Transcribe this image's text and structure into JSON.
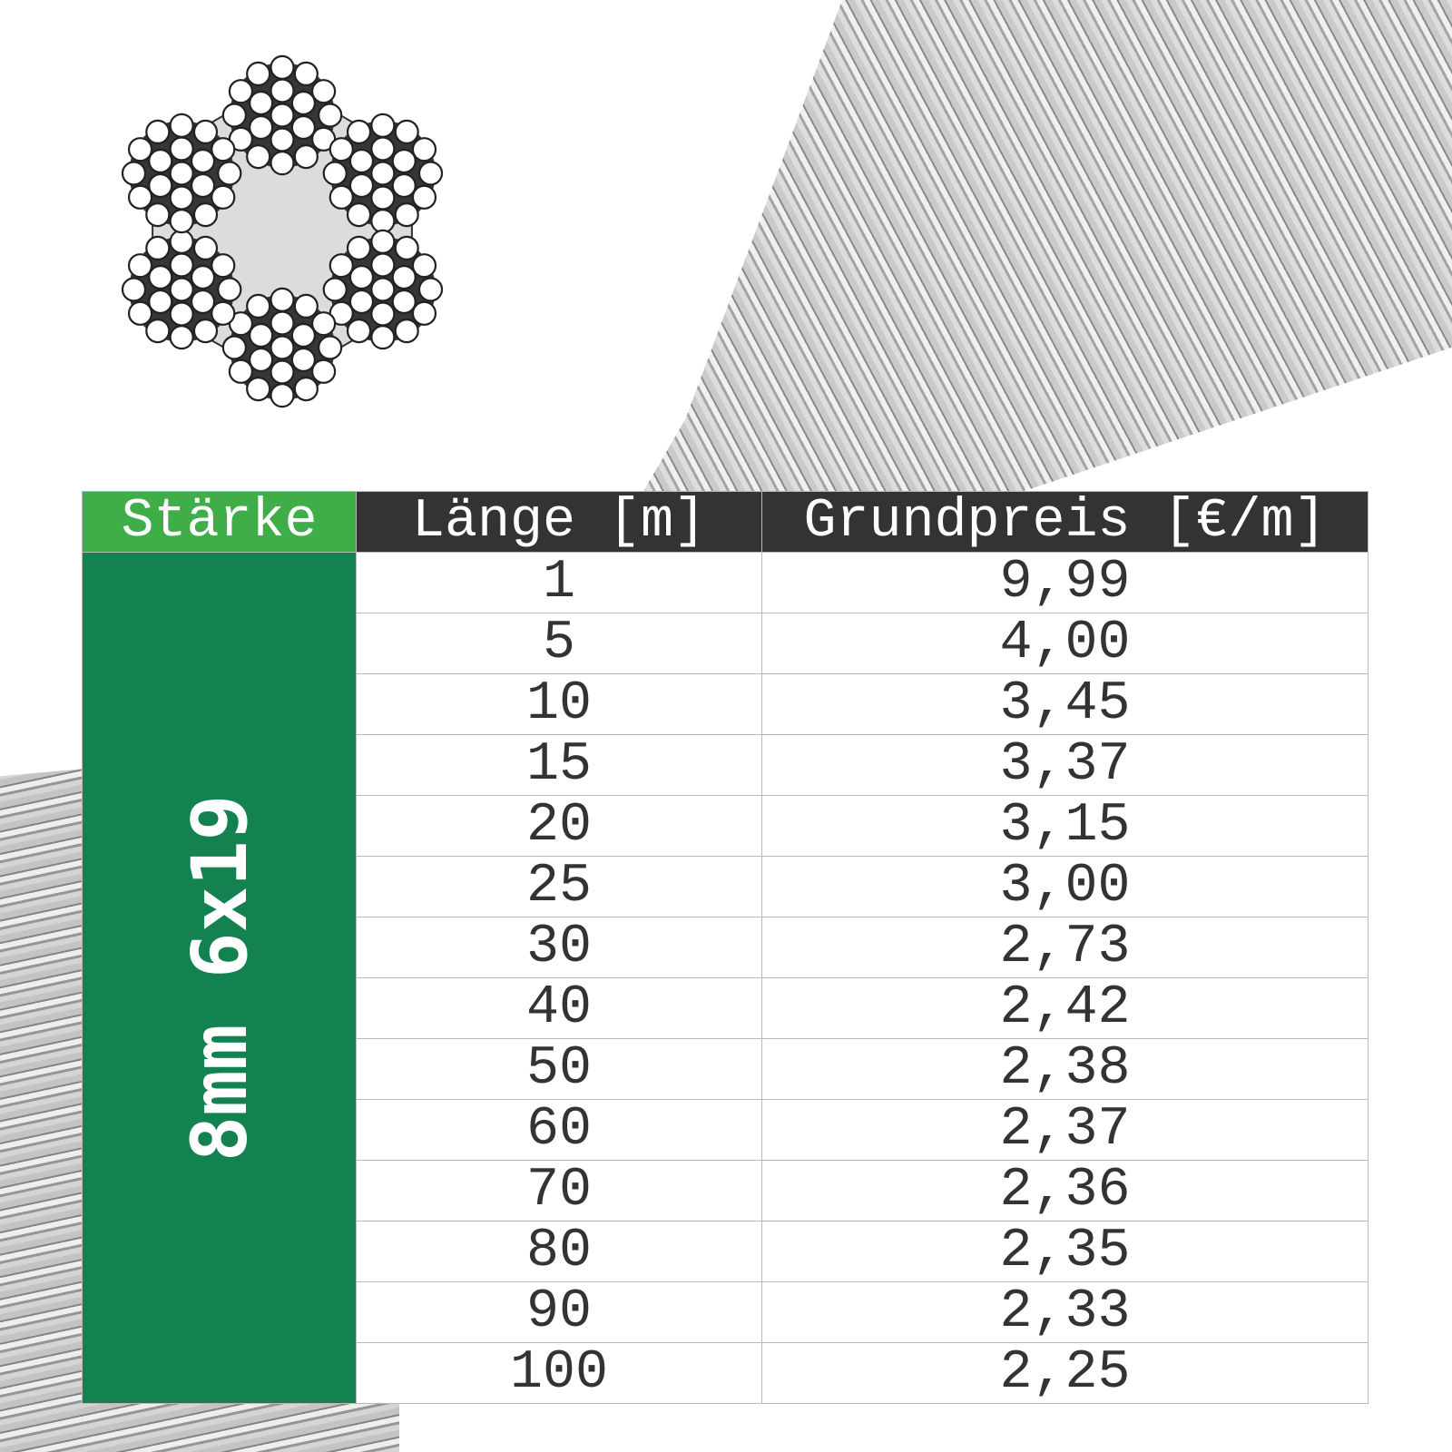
{
  "diagram": {
    "icon": "wire-rope-cross-section-6x19",
    "strands": 6,
    "wires_per_strand": 19
  },
  "table": {
    "headers": [
      "Stärke",
      "Länge [m]",
      "Grundpreis [€/m]"
    ],
    "thickness_label": "8mm 6x19",
    "rows": [
      {
        "length": "1",
        "price": "9,99"
      },
      {
        "length": "5",
        "price": "4,00"
      },
      {
        "length": "10",
        "price": "3,45"
      },
      {
        "length": "15",
        "price": "3,37"
      },
      {
        "length": "20",
        "price": "3,15"
      },
      {
        "length": "25",
        "price": "3,00"
      },
      {
        "length": "30",
        "price": "2,73"
      },
      {
        "length": "40",
        "price": "2,42"
      },
      {
        "length": "50",
        "price": "2,38"
      },
      {
        "length": "60",
        "price": "2,37"
      },
      {
        "length": "70",
        "price": "2,36"
      },
      {
        "length": "80",
        "price": "2,35"
      },
      {
        "length": "90",
        "price": "2,33"
      },
      {
        "length": "100",
        "price": "2,25"
      }
    ]
  },
  "colors": {
    "header_green": "#3fae49",
    "side_green": "#138150",
    "header_dark": "#333333"
  }
}
